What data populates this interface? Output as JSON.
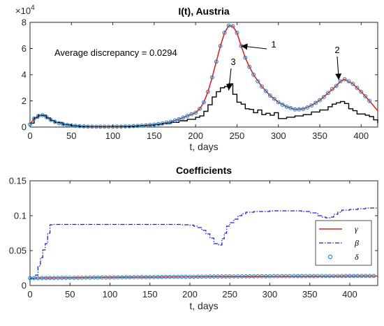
{
  "colors": {
    "gamma": "#e02020",
    "beta": "#1a22cc",
    "delta_edge": "#1f86c8",
    "observed": "#000000",
    "axis": "#262626"
  },
  "chart_data": [
    {
      "type": "line",
      "title": "I(t), Austria",
      "xlabel": "t, days",
      "ylabel": "",
      "exponent_label": "×10",
      "exponent_power": "4",
      "xlim": [
        0,
        420
      ],
      "ylim": [
        0,
        80000
      ],
      "xticks": [
        "0",
        "50",
        "100",
        "150",
        "200",
        "250",
        "300",
        "350",
        "400"
      ],
      "yticks": [
        "0",
        "2",
        "4",
        "6",
        "8"
      ],
      "grid": false,
      "annotation_text": "Average discrepancy = 0.0294",
      "markers": [
        {
          "label": "1",
          "points_to": [
            255,
            62000
          ]
        },
        {
          "label": "2",
          "points_to": [
            373,
            36000
          ]
        },
        {
          "label": "3",
          "points_to": [
            240,
            28000
          ]
        }
      ],
      "series": [
        {
          "style": "red-line",
          "x": [
            0,
            5,
            10,
            15,
            20,
            25,
            30,
            40,
            50,
            60,
            70,
            80,
            90,
            100,
            110,
            120,
            130,
            140,
            150,
            160,
            170,
            180,
            190,
            200,
            205,
            210,
            215,
            220,
            225,
            230,
            235,
            240,
            245,
            250,
            255,
            260,
            265,
            270,
            280,
            290,
            300,
            310,
            320,
            330,
            340,
            350,
            360,
            370,
            375,
            380,
            390,
            400,
            410,
            420
          ],
          "values": [
            2000,
            6500,
            8500,
            9000,
            7500,
            5500,
            4000,
            2200,
            1200,
            700,
            400,
            300,
            300,
            300,
            400,
            600,
            900,
            1300,
            1900,
            2800,
            4000,
            6000,
            8500,
            11000,
            14000,
            19000,
            27000,
            38000,
            50000,
            62000,
            72000,
            77500,
            77000,
            72000,
            62000,
            53000,
            46000,
            40000,
            31000,
            24000,
            19000,
            15500,
            13500,
            13800,
            16500,
            20500,
            26000,
            31500,
            35000,
            36500,
            33000,
            27000,
            20000,
            12500
          ]
        },
        {
          "style": "observed-step",
          "x": [
            0,
            5,
            10,
            15,
            20,
            25,
            30,
            40,
            50,
            60,
            70,
            80,
            90,
            100,
            110,
            120,
            130,
            140,
            150,
            160,
            170,
            180,
            190,
            200,
            205,
            210,
            215,
            220,
            225,
            230,
            235,
            240,
            245,
            250,
            255,
            260,
            265,
            270,
            275,
            280,
            285,
            290,
            295,
            300,
            310,
            320,
            330,
            340,
            350,
            360,
            365,
            370,
            375,
            380,
            385,
            390,
            395,
            400,
            405,
            410,
            415,
            420
          ],
          "values": [
            3000,
            7000,
            9000,
            9000,
            7000,
            5000,
            3500,
            1800,
            900,
            500,
            300,
            300,
            300,
            400,
            500,
            700,
            1000,
            1300,
            1800,
            2600,
            3600,
            4800,
            5900,
            7400,
            8500,
            12000,
            17000,
            23000,
            27000,
            30000,
            31000,
            33000,
            25000,
            19000,
            17500,
            14000,
            13500,
            11000,
            13000,
            9500,
            10500,
            9000,
            11000,
            6500,
            7500,
            8500,
            9500,
            11500,
            13000,
            15500,
            17500,
            18500,
            19500,
            18000,
            14000,
            12500,
            10000,
            10000,
            9000,
            8000,
            5500,
            3000
          ]
        },
        {
          "style": "blue-circles",
          "x": [
            0,
            5,
            10,
            15,
            20,
            25,
            30,
            35,
            40,
            45,
            50,
            55,
            60,
            65,
            70,
            75,
            80,
            85,
            90,
            95,
            100,
            105,
            110,
            115,
            120,
            125,
            130,
            135,
            140,
            145,
            150,
            155,
            160,
            165,
            170,
            175,
            180,
            185,
            190,
            195,
            200,
            205,
            210,
            215,
            220,
            225,
            230,
            235,
            240,
            245,
            250,
            255,
            260,
            265,
            270,
            275,
            280,
            285,
            290,
            295,
            300,
            305,
            310,
            315,
            320,
            325,
            330,
            335,
            340,
            345,
            350,
            355,
            360,
            365,
            370,
            375,
            380,
            385,
            390,
            395,
            400,
            405,
            410
          ],
          "values": [
            2000,
            6500,
            8500,
            9000,
            7500,
            5500,
            4000,
            3000,
            2200,
            1600,
            1200,
            900,
            700,
            500,
            400,
            350,
            300,
            300,
            300,
            300,
            300,
            350,
            400,
            500,
            600,
            750,
            900,
            1100,
            1300,
            1600,
            1900,
            2300,
            2800,
            3400,
            4000,
            5000,
            6000,
            7200,
            8500,
            9800,
            11000,
            14000,
            19000,
            27000,
            38000,
            50000,
            62000,
            72000,
            77500,
            77000,
            72000,
            62000,
            53000,
            46000,
            40000,
            35000,
            31000,
            27500,
            24000,
            21500,
            19000,
            17000,
            15500,
            14500,
            13500,
            13500,
            13800,
            15000,
            16500,
            18500,
            20500,
            23000,
            26000,
            29000,
            31500,
            35000,
            36500,
            35000,
            33000,
            30000,
            27000,
            23500,
            20000
          ]
        }
      ]
    },
    {
      "type": "line",
      "title": "Coefficients",
      "xlabel": "t, days",
      "ylabel": "",
      "xlim": [
        0,
        435
      ],
      "ylim": [
        0,
        0.15
      ],
      "xticks": [
        "0",
        "50",
        "100",
        "150",
        "200",
        "250",
        "300",
        "350",
        "400"
      ],
      "yticks": [
        "0",
        "0.05",
        "0.1",
        "0.15"
      ],
      "grid": false,
      "legend_position": "right",
      "series": [
        {
          "name": "γ",
          "style": "red-line",
          "x": [
            0,
            50,
            100,
            150,
            200,
            250,
            300,
            350,
            400,
            435
          ],
          "values": [
            0.0105,
            0.0111,
            0.0117,
            0.0121,
            0.0125,
            0.0128,
            0.013,
            0.0132,
            0.0134,
            0.0135
          ]
        },
        {
          "name": "β",
          "style": "blue-dashdot-step",
          "x": [
            0,
            7,
            10,
            13,
            16,
            19,
            22,
            25,
            30,
            60,
            100,
            150,
            190,
            200,
            205,
            210,
            215,
            220,
            225,
            230,
            236,
            240,
            243,
            246,
            250,
            255,
            260,
            265,
            270,
            280,
            300,
            320,
            340,
            350,
            360,
            365,
            370,
            375,
            380,
            385,
            390,
            400,
            410,
            420,
            435
          ],
          "values": [
            0.01,
            0.015,
            0.028,
            0.04,
            0.051,
            0.06,
            0.075,
            0.087,
            0.0875,
            0.0875,
            0.0875,
            0.0875,
            0.087,
            0.0865,
            0.085,
            0.083,
            0.079,
            0.074,
            0.068,
            0.06,
            0.058,
            0.067,
            0.075,
            0.085,
            0.09,
            0.095,
            0.1,
            0.103,
            0.105,
            0.106,
            0.107,
            0.107,
            0.106,
            0.104,
            0.1,
            0.098,
            0.097,
            0.098,
            0.102,
            0.105,
            0.108,
            0.109,
            0.11,
            0.111,
            0.111
          ]
        },
        {
          "name": "δ",
          "style": "blue-circles",
          "x": [
            0,
            5,
            10,
            15,
            20,
            25,
            30,
            35,
            40,
            45,
            50,
            55,
            60,
            65,
            70,
            75,
            80,
            85,
            90,
            95,
            100,
            105,
            110,
            115,
            120,
            125,
            130,
            135,
            140,
            145,
            150,
            155,
            160,
            165,
            170,
            175,
            180,
            185,
            190,
            195,
            200,
            205,
            210,
            215,
            220,
            225,
            230,
            235,
            240,
            245,
            250,
            255,
            260,
            265,
            270,
            275,
            280,
            285,
            290,
            295,
            300,
            305,
            310,
            315,
            320,
            325,
            330,
            335,
            340,
            345,
            350,
            355,
            360,
            365,
            370,
            375,
            380,
            385,
            390,
            395,
            400,
            405,
            410,
            415,
            420,
            425,
            430
          ],
          "values": [
            0.0105,
            0.0106,
            0.0106,
            0.0107,
            0.0107,
            0.0108,
            0.0108,
            0.0109,
            0.011,
            0.011,
            0.0111,
            0.0111,
            0.0112,
            0.0112,
            0.0113,
            0.0113,
            0.0114,
            0.0114,
            0.0115,
            0.0115,
            0.0116,
            0.0116,
            0.0117,
            0.0117,
            0.0118,
            0.0118,
            0.0119,
            0.0119,
            0.012,
            0.012,
            0.0121,
            0.0121,
            0.0122,
            0.0122,
            0.0123,
            0.0123,
            0.0124,
            0.0124,
            0.0125,
            0.0125,
            0.0126,
            0.0126,
            0.0127,
            0.0127,
            0.0128,
            0.0128,
            0.0129,
            0.0129,
            0.013,
            0.013,
            0.013,
            0.0131,
            0.0131,
            0.0131,
            0.0132,
            0.0132,
            0.0132,
            0.0133,
            0.0133,
            0.0133,
            0.0133,
            0.0134,
            0.0134,
            0.0134,
            0.0134,
            0.0134,
            0.0135,
            0.0135,
            0.0135,
            0.0135,
            0.0135,
            0.0135,
            0.0136,
            0.0136,
            0.0136,
            0.0136,
            0.0136,
            0.0136,
            0.0136,
            0.0137,
            0.0137,
            0.0137,
            0.0137,
            0.0137,
            0.0137,
            0.0137,
            0.0137
          ]
        }
      ]
    }
  ]
}
